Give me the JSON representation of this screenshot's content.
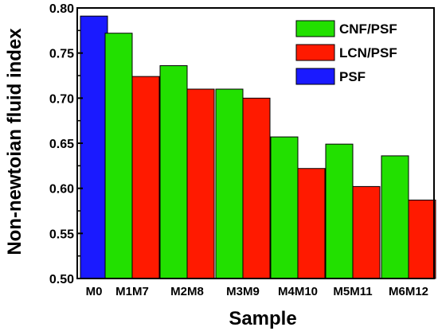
{
  "chart_data": {
    "type": "bar",
    "xlabel": "Sample",
    "ylabel": "Non-newtoian fluid index",
    "ylim": [
      0.5,
      0.8
    ],
    "yticks": [
      "0.50",
      "0.55",
      "0.60",
      "0.65",
      "0.70",
      "0.75",
      "0.80"
    ],
    "groups": [
      {
        "labels": [
          "M0"
        ],
        "bars": [
          {
            "series": "PSF",
            "value": 0.791
          }
        ]
      },
      {
        "labels": [
          "M1",
          "M7"
        ],
        "bars": [
          {
            "series": "CNF/PSF",
            "value": 0.772
          },
          {
            "series": "LCN/PSF",
            "value": 0.724
          }
        ]
      },
      {
        "labels": [
          "M2",
          "M8"
        ],
        "bars": [
          {
            "series": "CNF/PSF",
            "value": 0.736
          },
          {
            "series": "LCN/PSF",
            "value": 0.71
          }
        ]
      },
      {
        "labels": [
          "M3",
          "M9"
        ],
        "bars": [
          {
            "series": "CNF/PSF",
            "value": 0.71
          },
          {
            "series": "LCN/PSF",
            "value": 0.7
          }
        ]
      },
      {
        "labels": [
          "M4",
          "M10"
        ],
        "bars": [
          {
            "series": "CNF/PSF",
            "value": 0.657
          },
          {
            "series": "LCN/PSF",
            "value": 0.622
          }
        ]
      },
      {
        "labels": [
          "M5",
          "M11"
        ],
        "bars": [
          {
            "series": "CNF/PSF",
            "value": 0.649
          },
          {
            "series": "LCN/PSF",
            "value": 0.602
          }
        ]
      },
      {
        "labels": [
          "M6",
          "M12"
        ],
        "bars": [
          {
            "series": "CNF/PSF",
            "value": 0.636
          },
          {
            "series": "LCN/PSF",
            "value": 0.587
          }
        ]
      }
    ],
    "series": [
      {
        "name": "CNF/PSF",
        "color": "#22e000"
      },
      {
        "name": "LCN/PSF",
        "color": "#ff1a00"
      },
      {
        "name": "PSF",
        "color": "#1a1aff"
      }
    ],
    "legend_position": "top-right",
    "grid": false
  }
}
